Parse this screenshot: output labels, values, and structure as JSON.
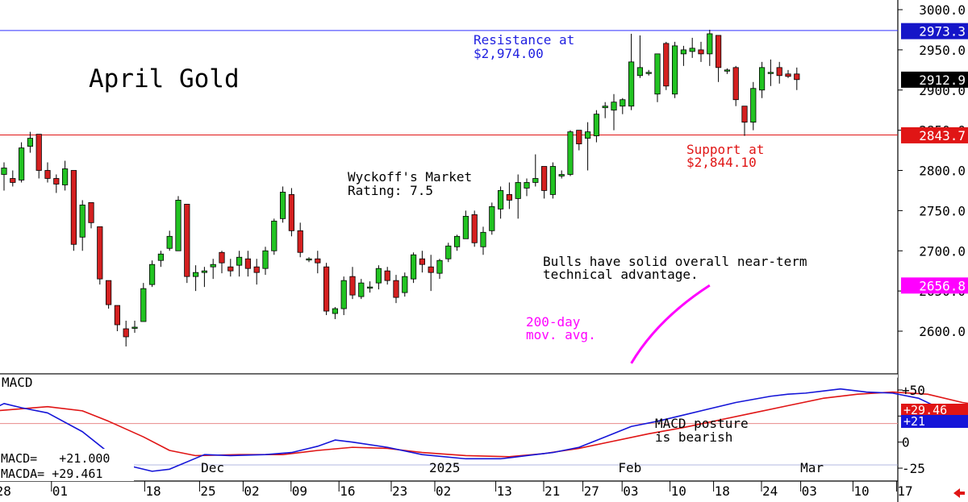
{
  "chart_data": [
    {
      "type": "candlestick",
      "title": "April Gold",
      "ylim": [
        2560,
        3010
      ],
      "y_ticks": [
        "3000.0",
        "2950.0",
        "2900.0",
        "2850.0",
        "2800.0",
        "2750.0",
        "2700.0",
        "2650.0",
        "2600.0"
      ],
      "y_tick_values": [
        3000,
        2950,
        2900,
        2850,
        2800,
        2750,
        2700,
        2650,
        2600
      ],
      "price_tags": [
        {
          "label": "2973.3",
          "value": 2973.3,
          "color": "#1515c8"
        },
        {
          "label": "2912.9",
          "value": 2912.9,
          "color": "#000000"
        },
        {
          "label": "2843.7",
          "value": 2843.7,
          "color": "#e01515"
        },
        {
          "label": "2656.8",
          "value": 2656.8,
          "color": "#ff00ff"
        }
      ],
      "resistance": {
        "value": 2974.0,
        "label": "Resistance at",
        "label2": "$2,974.00"
      },
      "support": {
        "value": 2844.1,
        "label": "Support at",
        "label2": "$2,844.10"
      },
      "annotations": {
        "rating": [
          "Wyckoff's Market",
          "Rating: 7.5"
        ],
        "comment": [
          "Bulls have solid overall near-term",
          "technical advantage."
        ],
        "ma": [
          "200-day",
          "mov. avg."
        ]
      },
      "candles": [
        [
          2795,
          2810,
          2775,
          2803
        ],
        [
          2790,
          2800,
          2780,
          2785
        ],
        [
          2788,
          2835,
          2785,
          2828
        ],
        [
          2830,
          2848,
          2822,
          2840
        ],
        [
          2845,
          2845,
          2790,
          2800
        ],
        [
          2800,
          2810,
          2785,
          2790
        ],
        [
          2790,
          2795,
          2772,
          2783
        ],
        [
          2782,
          2812,
          2775,
          2802
        ],
        [
          2800,
          2800,
          2700,
          2708
        ],
        [
          2717,
          2763,
          2700,
          2757
        ],
        [
          2760,
          2760,
          2728,
          2735
        ],
        [
          2730,
          2730,
          2658,
          2665
        ],
        [
          2663,
          2663,
          2628,
          2633
        ],
        [
          2632,
          2632,
          2600,
          2608
        ],
        [
          2603,
          2613,
          2581,
          2593
        ],
        [
          2605,
          2613,
          2598,
          2605
        ],
        [
          2612,
          2660,
          2612,
          2653
        ],
        [
          2658,
          2688,
          2655,
          2683
        ],
        [
          2688,
          2700,
          2680,
          2696
        ],
        [
          2703,
          2725,
          2700,
          2718
        ],
        [
          2700,
          2768,
          2700,
          2763
        ],
        [
          2758,
          2758,
          2660,
          2668
        ],
        [
          2668,
          2682,
          2650,
          2673
        ],
        [
          2673,
          2680,
          2655,
          2675
        ],
        [
          2680,
          2690,
          2665,
          2683
        ],
        [
          2698,
          2700,
          2672,
          2685
        ],
        [
          2680,
          2690,
          2668,
          2675
        ],
        [
          2682,
          2700,
          2668,
          2692
        ],
        [
          2690,
          2700,
          2668,
          2678
        ],
        [
          2680,
          2690,
          2658,
          2673
        ],
        [
          2678,
          2705,
          2670,
          2700
        ],
        [
          2700,
          2740,
          2695,
          2737
        ],
        [
          2740,
          2780,
          2735,
          2773
        ],
        [
          2770,
          2778,
          2718,
          2725
        ],
        [
          2725,
          2735,
          2692,
          2698
        ],
        [
          2690,
          2692,
          2686,
          2690
        ],
        [
          2690,
          2700,
          2672,
          2685
        ],
        [
          2680,
          2685,
          2620,
          2625
        ],
        [
          2622,
          2630,
          2615,
          2628
        ],
        [
          2628,
          2668,
          2620,
          2663
        ],
        [
          2668,
          2680,
          2640,
          2645
        ],
        [
          2643,
          2665,
          2640,
          2660
        ],
        [
          2655,
          2662,
          2648,
          2655
        ],
        [
          2660,
          2682,
          2652,
          2678
        ],
        [
          2675,
          2680,
          2658,
          2663
        ],
        [
          2663,
          2670,
          2635,
          2642
        ],
        [
          2648,
          2673,
          2643,
          2668
        ],
        [
          2665,
          2698,
          2660,
          2695
        ],
        [
          2690,
          2700,
          2673,
          2683
        ],
        [
          2680,
          2695,
          2650,
          2673
        ],
        [
          2672,
          2690,
          2665,
          2688
        ],
        [
          2690,
          2710,
          2686,
          2706
        ],
        [
          2705,
          2720,
          2700,
          2718
        ],
        [
          2715,
          2750,
          2715,
          2743
        ],
        [
          2745,
          2750,
          2705,
          2710
        ],
        [
          2705,
          2730,
          2695,
          2723
        ],
        [
          2725,
          2760,
          2720,
          2755
        ],
        [
          2752,
          2780,
          2740,
          2775
        ],
        [
          2770,
          2785,
          2752,
          2763
        ],
        [
          2765,
          2795,
          2740,
          2785
        ],
        [
          2778,
          2790,
          2768,
          2785
        ],
        [
          2785,
          2820,
          2780,
          2790
        ],
        [
          2805,
          2805,
          2765,
          2775
        ],
        [
          2770,
          2810,
          2765,
          2805
        ],
        [
          2793,
          2800,
          2790,
          2795
        ],
        [
          2795,
          2850,
          2793,
          2848
        ],
        [
          2850,
          2850,
          2825,
          2833
        ],
        [
          2840,
          2860,
          2800,
          2848
        ],
        [
          2843,
          2875,
          2835,
          2870
        ],
        [
          2878,
          2885,
          2865,
          2880
        ],
        [
          2875,
          2895,
          2850,
          2885
        ],
        [
          2880,
          2890,
          2870,
          2888
        ],
        [
          2880,
          2970,
          2875,
          2935
        ],
        [
          2918,
          2968,
          2915,
          2928
        ],
        [
          2922,
          2925,
          2918,
          2922
        ],
        [
          2895,
          2945,
          2885,
          2945
        ],
        [
          2958,
          2960,
          2900,
          2905
        ],
        [
          2895,
          2960,
          2890,
          2955
        ],
        [
          2945,
          2955,
          2930,
          2950
        ],
        [
          2948,
          2965,
          2940,
          2952
        ],
        [
          2950,
          2960,
          2935,
          2945
        ],
        [
          2945,
          2975,
          2930,
          2970
        ],
        [
          2968,
          2968,
          2910,
          2928
        ],
        [
          2925,
          2927,
          2920,
          2925
        ],
        [
          2928,
          2930,
          2880,
          2888
        ],
        [
          2880,
          2880,
          2843,
          2860
        ],
        [
          2860,
          2910,
          2850,
          2902
        ],
        [
          2900,
          2935,
          2890,
          2928
        ],
        [
          2922,
          2938,
          2905,
          2922
        ],
        [
          2928,
          2935,
          2908,
          2918
        ],
        [
          2920,
          2925,
          2915,
          2917
        ],
        [
          2920,
          2928,
          2900,
          2913
        ]
      ],
      "ma200": [
        [
          72,
          2560
        ],
        [
          75,
          2615
        ],
        [
          81,
          2657
        ]
      ],
      "x_labels": [
        "28",
        "01",
        "18",
        "25",
        "02",
        "09",
        "16",
        "23",
        "02",
        "13",
        "21",
        "27",
        "03",
        "10",
        "18",
        "24",
        "03",
        "10",
        "17"
      ],
      "month_labels": [
        "Dec",
        "2025",
        "Feb",
        "Mar"
      ]
    },
    {
      "type": "line",
      "title": "MACD",
      "ylim": [
        -28,
        62
      ],
      "y_ticks": [
        "+50",
        "25",
        "0",
        "-25"
      ],
      "y_tick_values": [
        50,
        25,
        0,
        -25
      ],
      "series": [
        {
          "name": "MACD",
          "color": "#1515d8",
          "value_label": "+21.000",
          "tag": "+21",
          "points": [
            [
              -1,
              33
            ],
            [
              0,
              37
            ],
            [
              2,
              33
            ],
            [
              5,
              28
            ],
            [
              9,
              10
            ],
            [
              12,
              -10
            ],
            [
              14,
              -22
            ],
            [
              17,
              -28
            ],
            [
              19,
              -26
            ],
            [
              23,
              -12
            ],
            [
              26,
              -13
            ],
            [
              30,
              -12
            ],
            [
              33,
              -10
            ],
            [
              36,
              -4
            ],
            [
              38,
              2
            ],
            [
              40,
              0
            ],
            [
              44,
              -5
            ],
            [
              48,
              -12
            ],
            [
              53,
              -16
            ],
            [
              57,
              -16
            ],
            [
              60,
              -13
            ],
            [
              63,
              -10
            ],
            [
              66,
              -5
            ],
            [
              69,
              5
            ],
            [
              72,
              15
            ],
            [
              75,
              20
            ],
            [
              78,
              26
            ],
            [
              81,
              32
            ],
            [
              84,
              38
            ],
            [
              88,
              44
            ],
            [
              90,
              46
            ],
            [
              92,
              47
            ],
            [
              96,
              51
            ],
            [
              99,
              48
            ],
            [
              102,
              47
            ],
            [
              105,
              42
            ],
            [
              108,
              30
            ],
            [
              110,
              25
            ],
            [
              114,
              23
            ],
            [
              117,
              21
            ]
          ]
        },
        {
          "name": "MACDA",
          "color": "#e01515",
          "value_label": "+29.461",
          "tag": "+29.46",
          "points": [
            [
              -1,
              30
            ],
            [
              2,
              32
            ],
            [
              5,
              34
            ],
            [
              9,
              30
            ],
            [
              12,
              20
            ],
            [
              16,
              5
            ],
            [
              19,
              -8
            ],
            [
              22,
              -13
            ],
            [
              27,
              -12
            ],
            [
              32,
              -12
            ],
            [
              36,
              -8
            ],
            [
              40,
              -5
            ],
            [
              44,
              -6
            ],
            [
              48,
              -10
            ],
            [
              53,
              -13
            ],
            [
              58,
              -14
            ],
            [
              62,
              -11
            ],
            [
              66,
              -6
            ],
            [
              70,
              1
            ],
            [
              74,
              8
            ],
            [
              78,
              14
            ],
            [
              82,
              21
            ],
            [
              86,
              28
            ],
            [
              90,
              35
            ],
            [
              94,
              42
            ],
            [
              98,
              46
            ],
            [
              102,
              48
            ],
            [
              106,
              46
            ],
            [
              110,
              38
            ],
            [
              114,
              33
            ],
            [
              117,
              29
            ]
          ]
        }
      ]
    }
  ],
  "labels": {
    "macd_title": "MACD",
    "macd_value": "MACD=   +21.000",
    "macda_value": "MACDA= +29.461",
    "macd_comment": [
      "MACD posture",
      "is bearish"
    ]
  },
  "colors": {
    "up_candle": "#22c322",
    "down_candle": "#d42020",
    "ma_line": "#ff00ff",
    "resistance_line": "#3030ff",
    "support_line": "#e01515",
    "macd_zero_line": "#e88a8a",
    "arrow": "#e01515"
  },
  "icons": {
    "scroll_arrow": "left-arrow-icon"
  }
}
